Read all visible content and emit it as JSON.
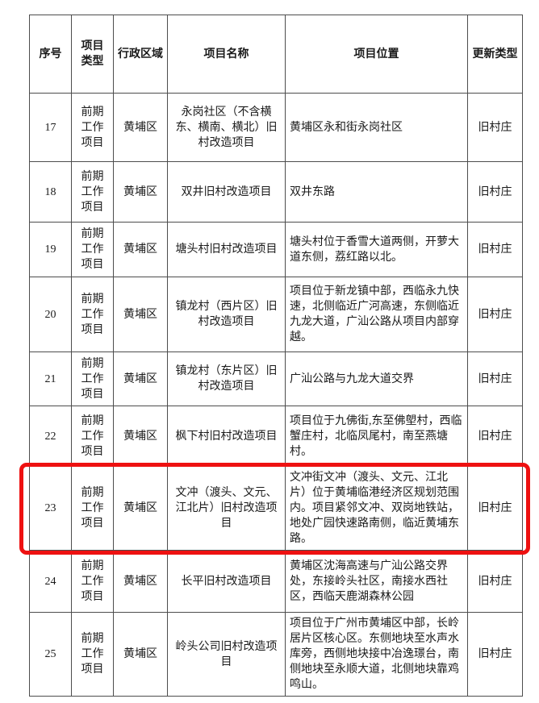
{
  "table": {
    "headers": {
      "no": "序号",
      "type": "项目类型",
      "region": "行政区域",
      "name": "项目名称",
      "location": "项目位置",
      "update": "更新类型"
    },
    "rows": [
      {
        "no": "17",
        "type": "前期工作项目",
        "region": "黄埔区",
        "name": "永岗社区（不含横东、横南、横北）旧村改造项目",
        "location": "黄埔区永和街永岗社区",
        "update": "旧村庄"
      },
      {
        "no": "18",
        "type": "前期工作项目",
        "region": "黄埔区",
        "name": "双井旧村改造项目",
        "location": "双井东路",
        "update": "旧村庄"
      },
      {
        "no": "19",
        "type": "前期工作项目",
        "region": "黄埔区",
        "name": "塘头村旧村改造项目",
        "location": "塘头村位于香雪大道两侧，开萝大道东侧，荔红路以北。",
        "update": "旧村庄"
      },
      {
        "no": "20",
        "type": "前期工作项目",
        "region": "黄埔区",
        "name": "镇龙村（西片区）旧村改造项目",
        "location": "项目位于新龙镇中部，西临永九快 速，北侧临近广河高速，东侧临近九龙大道，广汕公路从项目内部穿越。",
        "update": "旧村庄"
      },
      {
        "no": "21",
        "type": "前期工作项目",
        "region": "黄埔区",
        "name": "镇龙村（东片区）旧村改造项目",
        "location": "广汕公路与九龙大道交界",
        "update": "旧村庄"
      },
      {
        "no": "22",
        "type": "前期工作项目",
        "region": "黄埔区",
        "name": "枫下村旧村改造项目",
        "location": "项目位于九佛街,东至佛塱村，西临蟹庄村，北临凤尾村，南至燕塘村。",
        "update": "旧村庄"
      },
      {
        "no": "23",
        "type": "前期工作项目",
        "region": "黄埔区",
        "name": "文冲（渡头、文元、江北片）旧村改造项目",
        "location": "文冲街文冲（渡头、文元、江北片）位于黄埔临港经济区规划范围内。项目紧邻文冲、双岗地铁站，地处广园快速路南侧，临近黄埔东路。",
        "update": "旧村庄"
      },
      {
        "no": "24",
        "type": "前期工作项目",
        "region": "黄埔区",
        "name": "长平旧村改造项目",
        "location": "黄埔区沈海高速与广汕公路交界处，东接岭头社区，南接水西社区，西临天鹿湖森林公园",
        "update": "旧村庄"
      },
      {
        "no": "25",
        "type": "前期工作项目",
        "region": "黄埔区",
        "name": "岭头公司旧村改造项目",
        "location": "项目位于广州市黄埔区中部，长岭居片区核心区。东侧地块至水声水库旁，西侧地块接中冶逸璟台，南侧地块至永顺大道，北侧地块靠鸡鸣山。",
        "update": "旧村庄"
      }
    ]
  },
  "highlight": {
    "row_no": "23",
    "color": "#ee1111"
  }
}
